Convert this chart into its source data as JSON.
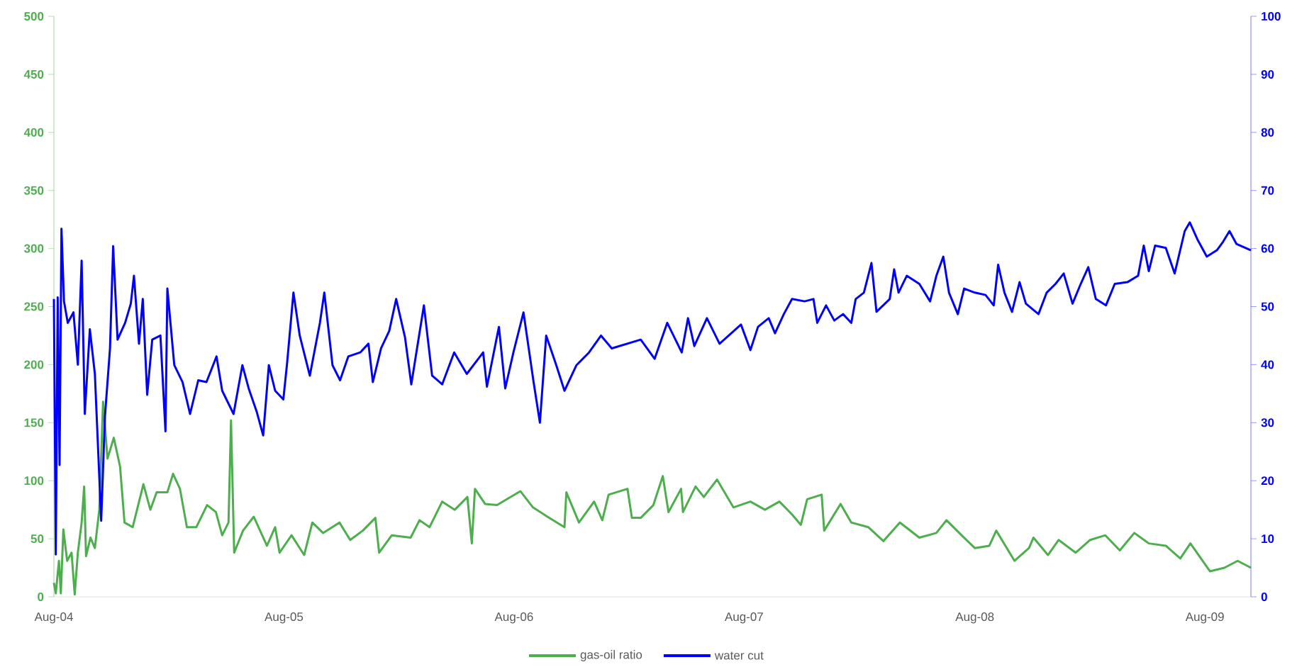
{
  "chart_data": {
    "type": "line",
    "legend": "bottom",
    "xlim": [
      "2004-08-01",
      "2009-10-13"
    ],
    "xticks": [
      {
        "value": "2004-08-01",
        "label": "Aug-04"
      },
      {
        "value": "2005-08-01",
        "label": "Aug-05"
      },
      {
        "value": "2006-08-01",
        "label": "Aug-06"
      },
      {
        "value": "2007-08-01",
        "label": "Aug-07"
      },
      {
        "value": "2008-08-01",
        "label": "Aug-08"
      },
      {
        "value": "2009-08-01",
        "label": "Aug-09"
      }
    ],
    "ylim": [
      0,
      500
    ],
    "yticks": [
      0,
      50,
      100,
      150,
      200,
      250,
      300,
      350,
      400,
      450,
      500
    ],
    "y2lim": [
      0,
      100
    ],
    "y2ticks": [
      0,
      10,
      20,
      30,
      40,
      50,
      60,
      70,
      80,
      90,
      100
    ],
    "series": [
      {
        "name": "gas-oil ratio",
        "color": "#4cae4c",
        "x": [
          "2004-08-01",
          "2004-08-04",
          "2004-08-09",
          "2004-08-12",
          "2004-08-16",
          "2004-08-22",
          "2004-08-29",
          "2004-09-03",
          "2004-09-08",
          "2004-09-14",
          "2004-09-18",
          "2004-09-21",
          "2004-09-28",
          "2004-10-05",
          "2004-10-12",
          "2004-10-18",
          "2004-10-25",
          "2004-11-04",
          "2004-11-14",
          "2004-11-21",
          "2004-12-04",
          "2004-12-21",
          "2005-01-01",
          "2005-01-11",
          "2005-01-28",
          "2005-02-06",
          "2005-02-17",
          "2005-02-28",
          "2005-03-15",
          "2005-04-01",
          "2005-04-15",
          "2005-04-25",
          "2005-05-05",
          "2005-05-09",
          "2005-05-14",
          "2005-05-28",
          "2005-06-14",
          "2005-07-05",
          "2005-07-18",
          "2005-07-25",
          "2005-08-13",
          "2005-09-02",
          "2005-09-15",
          "2005-10-02",
          "2005-10-28",
          "2005-11-14",
          "2005-12-04",
          "2005-12-24",
          "2005-12-30",
          "2006-01-19",
          "2006-02-18",
          "2006-03-04",
          "2006-03-20",
          "2006-04-09",
          "2006-04-29",
          "2006-05-19",
          "2006-05-26",
          "2006-05-31",
          "2006-06-16",
          "2006-07-05",
          "2006-08-11",
          "2006-08-31",
          "2006-09-23",
          "2006-10-20",
          "2006-10-23",
          "2006-11-12",
          "2006-12-06",
          "2006-12-19",
          "2006-12-29",
          "2007-01-28",
          "2007-02-04",
          "2007-02-18",
          "2007-03-10",
          "2007-03-25",
          "2007-04-03",
          "2007-04-23",
          "2007-04-26",
          "2007-05-16",
          "2007-05-29",
          "2007-06-19",
          "2007-07-15",
          "2007-08-11",
          "2007-09-03",
          "2007-09-26",
          "2007-10-16",
          "2007-10-30",
          "2007-11-09",
          "2007-12-02",
          "2007-12-06",
          "2008-01-01",
          "2008-01-18",
          "2008-02-14",
          "2008-03-09",
          "2008-04-04",
          "2008-05-05",
          "2008-06-01",
          "2008-06-17",
          "2008-07-11",
          "2008-08-01",
          "2008-08-24",
          "2008-09-04",
          "2008-10-03",
          "2008-10-26",
          "2008-11-02",
          "2008-11-25",
          "2008-12-12",
          "2009-01-08",
          "2009-01-31",
          "2009-02-24",
          "2009-03-19",
          "2009-04-11",
          "2009-05-04",
          "2009-05-31",
          "2009-06-23",
          "2009-07-09",
          "2009-08-09",
          "2009-09-01",
          "2009-09-22",
          "2009-10-13"
        ],
        "values": [
          12,
          3,
          31,
          3,
          58,
          31,
          38,
          2,
          38,
          64,
          95,
          35,
          51,
          42,
          75,
          168,
          119,
          137,
          112,
          64,
          60,
          97,
          75,
          90,
          90,
          106,
          93,
          60,
          60,
          79,
          73,
          53,
          64,
          152,
          38,
          57,
          69,
          44,
          60,
          38,
          53,
          36,
          64,
          55,
          64,
          49,
          57,
          68,
          38,
          53,
          51,
          66,
          60,
          82,
          75,
          86,
          46,
          93,
          80,
          79,
          91,
          77,
          69,
          60,
          90,
          64,
          82,
          66,
          88,
          93,
          68,
          68,
          79,
          104,
          73,
          93,
          73,
          95,
          86,
          101,
          77,
          82,
          75,
          82,
          71,
          62,
          84,
          88,
          57,
          80,
          64,
          60,
          48,
          64,
          51,
          55,
          66,
          53,
          42,
          44,
          57,
          31,
          42,
          51,
          36,
          49,
          38,
          49,
          53,
          40,
          55,
          46,
          44,
          33,
          46,
          22,
          25,
          31,
          25
        ]
      },
      {
        "name": "water cut",
        "color": "#0000ff",
        "axis": "y2",
        "x": [
          "2004-08-01",
          "2004-08-04",
          "2004-08-07",
          "2004-08-10",
          "2004-08-13",
          "2004-08-17",
          "2004-08-23",
          "2004-09-01",
          "2004-09-08",
          "2004-09-14",
          "2004-09-19",
          "2004-09-27",
          "2004-10-05",
          "2004-10-15",
          "2004-10-21",
          "2004-10-29",
          "2004-11-03",
          "2004-11-10",
          "2004-11-22",
          "2004-12-01",
          "2004-12-06",
          "2004-12-14",
          "2004-12-20",
          "2004-12-27",
          "2005-01-04",
          "2005-01-17",
          "2005-01-25",
          "2005-01-28",
          "2005-02-08",
          "2005-02-21",
          "2005-03-05",
          "2005-03-18",
          "2005-03-31",
          "2005-04-16",
          "2005-04-25",
          "2005-05-13",
          "2005-05-27",
          "2005-06-06",
          "2005-06-19",
          "2005-06-29",
          "2005-07-08",
          "2005-07-18",
          "2005-07-31",
          "2005-08-06",
          "2005-08-16",
          "2005-08-26",
          "2005-09-11",
          "2005-09-27",
          "2005-10-04",
          "2005-10-17",
          "2005-10-29",
          "2005-11-11",
          "2005-11-30",
          "2005-12-13",
          "2005-12-20",
          "2006-01-02",
          "2006-01-15",
          "2006-01-26",
          "2006-02-09",
          "2006-02-19",
          "2006-03-11",
          "2006-03-24",
          "2006-04-09",
          "2006-04-28",
          "2006-05-18",
          "2006-06-13",
          "2006-06-19",
          "2006-07-08",
          "2006-07-18",
          "2006-07-31",
          "2006-08-16",
          "2006-09-01",
          "2006-09-11",
          "2006-09-21",
          "2006-10-07",
          "2006-10-20",
          "2006-11-08",
          "2006-11-28",
          "2006-12-17",
          "2007-01-03",
          "2007-02-18",
          "2007-03-12",
          "2007-04-01",
          "2007-04-24",
          "2007-05-04",
          "2007-05-14",
          "2007-06-03",
          "2007-06-23",
          "2007-07-27",
          "2007-08-11",
          "2007-08-23",
          "2007-09-09",
          "2007-09-19",
          "2007-10-03",
          "2007-10-16",
          "2007-11-05",
          "2007-11-19",
          "2007-11-25",
          "2007-12-09",
          "2007-12-22",
          "2008-01-05",
          "2008-01-18",
          "2008-01-25",
          "2008-02-07",
          "2008-02-19",
          "2008-02-27",
          "2008-03-19",
          "2008-03-26",
          "2008-04-02",
          "2008-04-15",
          "2008-05-05",
          "2008-05-22",
          "2008-06-01",
          "2008-06-12",
          "2008-06-21",
          "2008-07-05",
          "2008-07-15",
          "2008-08-01",
          "2008-08-18",
          "2008-08-31",
          "2008-09-07",
          "2008-09-17",
          "2008-09-29",
          "2008-10-11",
          "2008-10-21",
          "2008-11-10",
          "2008-11-23",
          "2008-12-07",
          "2008-12-20",
          "2009-01-03",
          "2009-01-16",
          "2009-01-28",
          "2009-02-09",
          "2009-02-25",
          "2009-03-11",
          "2009-03-31",
          "2009-04-17",
          "2009-04-26",
          "2009-05-04",
          "2009-05-14",
          "2009-05-31",
          "2009-06-14",
          "2009-06-30",
          "2009-07-08",
          "2009-07-20",
          "2009-08-04",
          "2009-08-20",
          "2009-08-30",
          "2009-09-09",
          "2009-09-20",
          "2009-10-13"
        ],
        "values": [
          51.3,
          7.3,
          51.6,
          22.7,
          63.4,
          50.9,
          47.2,
          49,
          40,
          57.9,
          31.5,
          46.1,
          38.4,
          13.1,
          31.1,
          42.8,
          60.4,
          44.3,
          47.2,
          50.5,
          55.3,
          43.6,
          51.3,
          34.8,
          44.3,
          45,
          28.5,
          53.1,
          39.9,
          37,
          31.5,
          37.3,
          37,
          41.4,
          35.5,
          31.5,
          39.9,
          35.9,
          31.8,
          27.8,
          39.9,
          35.5,
          34,
          40.3,
          52.4,
          45,
          38.1,
          47.2,
          52.4,
          39.9,
          37.3,
          41.4,
          42.1,
          43.6,
          37,
          42.8,
          45.8,
          51.3,
          44.7,
          36.6,
          50.2,
          38.1,
          36.6,
          42.1,
          38.4,
          42.1,
          36.2,
          46.5,
          35.9,
          42.1,
          49,
          37,
          30,
          45,
          39.9,
          35.5,
          39.9,
          42.1,
          45,
          42.8,
          44.3,
          41,
          47.2,
          42.1,
          48,
          43.2,
          48,
          43.6,
          46.9,
          42.5,
          46.5,
          48,
          45.4,
          48.7,
          51.3,
          50.9,
          51.3,
          47.2,
          50.2,
          47.6,
          48.7,
          47.2,
          51.3,
          52.4,
          57.5,
          49.1,
          51.3,
          56.4,
          52.4,
          55.3,
          53.9,
          50.9,
          55.3,
          58.6,
          52.4,
          48.7,
          53.1,
          52.4,
          52,
          50.2,
          57.2,
          52.4,
          49.1,
          54.2,
          50.5,
          48.7,
          52.4,
          53.9,
          55.7,
          50.5,
          53.9,
          56.8,
          51.3,
          50.2,
          53.9,
          54.2,
          55.3,
          60.5,
          56.1,
          60.5,
          60.1,
          55.7,
          63,
          64.5,
          61.6,
          58.6,
          59.7,
          61.2,
          63,
          60.8,
          59.7
        ]
      }
    ]
  }
}
